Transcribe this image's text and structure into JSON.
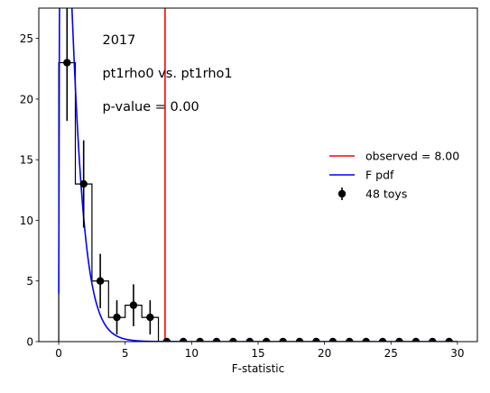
{
  "chart_data": {
    "type": "histogram",
    "xlabel": "F-statistic",
    "ylabel": "",
    "xlim": [
      -1.5,
      31.5
    ],
    "ylim": [
      0,
      27.5
    ],
    "xticks": [
      0,
      5,
      10,
      15,
      20,
      25,
      30
    ],
    "yticks": [
      0,
      5,
      10,
      15,
      20,
      25
    ],
    "annotations": [
      "2017",
      "pt1rho0 vs. pt1rho1",
      "p-value = 0.00"
    ],
    "histogram": {
      "bin_edges": [
        0,
        1.25,
        2.5,
        3.75,
        5.0,
        6.25,
        7.5,
        8.75,
        10.0,
        11.25,
        12.5,
        13.75,
        15.0,
        16.25,
        17.5,
        18.75,
        20.0,
        21.25,
        22.5,
        23.75,
        25.0,
        26.25,
        27.5,
        28.75,
        30.0
      ],
      "counts": [
        23,
        13,
        5,
        2,
        3,
        2,
        0,
        0,
        0,
        0,
        0,
        0,
        0,
        0,
        0,
        0,
        0,
        0,
        0,
        0,
        0,
        0,
        0,
        0
      ],
      "color": "#000000"
    },
    "series": [
      {
        "name": "observed = 8.00",
        "kind": "vline",
        "x": 8.0,
        "color": "#ff0000"
      },
      {
        "name": "F pdf",
        "kind": "curve",
        "color": "#0000ff"
      },
      {
        "name": "48 toys",
        "kind": "errorbar",
        "color": "#000000",
        "x": [
          0.625,
          1.875,
          3.125,
          4.375,
          5.625,
          6.875,
          8.125,
          9.375,
          10.625,
          11.875,
          13.125,
          14.375,
          15.625,
          16.875,
          18.125,
          19.375,
          20.625,
          21.875,
          23.125,
          24.375,
          25.625,
          26.875,
          28.125,
          29.375
        ],
        "y": [
          23,
          13,
          5,
          2,
          3,
          2,
          0,
          0,
          0,
          0,
          0,
          0,
          0,
          0,
          0,
          0,
          0,
          0,
          0,
          0,
          0,
          0,
          0,
          0
        ],
        "yerr": [
          4.8,
          3.6,
          2.24,
          1.41,
          1.73,
          1.41,
          0,
          0,
          0,
          0,
          0,
          0,
          0,
          0,
          0,
          0,
          0,
          0,
          0,
          0,
          0,
          0,
          0,
          0
        ]
      }
    ],
    "legend": {
      "placement": "center-right"
    }
  }
}
